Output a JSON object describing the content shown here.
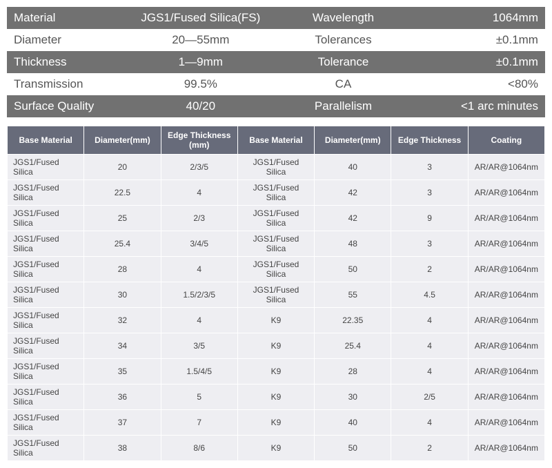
{
  "specs": {
    "rows": [
      {
        "style": "dark",
        "c1": "Material",
        "c2": "JGS1/Fused Silica(FS)",
        "c3": "Wavelength",
        "c4": "1064mm"
      },
      {
        "style": "light",
        "c1": "Diameter",
        "c2": "20—55mm",
        "c3": "Tolerances",
        "c4": "±0.1mm"
      },
      {
        "style": "dark",
        "c1": "Thickness",
        "c2": "1—9mm",
        "c3": "Tolerance",
        "c4": "±0.1mm"
      },
      {
        "style": "light",
        "c1": "Transmission",
        "c2": "99.5%",
        "c3": "CA",
        "c4": "<80%"
      },
      {
        "style": "dark",
        "c1": "Surface Quality",
        "c2": "40/20",
        "c3": "Parallelism",
        "c4": "<1 arc minutes"
      }
    ]
  },
  "dataTable": {
    "headers": [
      "Base Material",
      "Diameter(mm)",
      "Edge Thickness (mm)",
      "Base Material",
      "Diameter(mm)",
      "Edge Thickness",
      "Coating"
    ],
    "rows": [
      [
        "JGS1/Fused Silica",
        "20",
        "2/3/5",
        "JGS1/Fused Silica",
        "40",
        "3",
        "AR/AR@1064nm"
      ],
      [
        "JGS1/Fused Silica",
        "22.5",
        "4",
        "JGS1/Fused Silica",
        "42",
        "3",
        "AR/AR@1064nm"
      ],
      [
        "JGS1/Fused Silica",
        "25",
        "2/3",
        "JGS1/Fused Silica",
        "42",
        "9",
        "AR/AR@1064nm"
      ],
      [
        "JGS1/Fused Silica",
        "25.4",
        "3/4/5",
        "JGS1/Fused Silica",
        "48",
        "3",
        "AR/AR@1064nm"
      ],
      [
        "JGS1/Fused Silica",
        "28",
        "4",
        "JGS1/Fused Silica",
        "50",
        "2",
        "AR/AR@1064nm"
      ],
      [
        "JGS1/Fused Silica",
        "30",
        "1.5/2/3/5",
        "JGS1/Fused Silica",
        "55",
        "4.5",
        "AR/AR@1064nm"
      ],
      [
        "JGS1/Fused Silica",
        "32",
        "4",
        "K9",
        "22.35",
        "4",
        "AR/AR@1064nm"
      ],
      [
        "JGS1/Fused Silica",
        "34",
        "3/5",
        "K9",
        "25.4",
        "4",
        "AR/AR@1064nm"
      ],
      [
        "JGS1/Fused Silica",
        "35",
        "1.5/4/5",
        "K9",
        "28",
        "4",
        "AR/AR@1064nm"
      ],
      [
        "JGS1/Fused Silica",
        "36",
        "5",
        "K9",
        "30",
        "2/5",
        "AR/AR@1064nm"
      ],
      [
        "JGS1/Fused Silica",
        "37",
        "7",
        "K9",
        "40",
        "4",
        "AR/AR@1064nm"
      ],
      [
        "JGS1/Fused Silica",
        "38",
        "8/6",
        "K9",
        "50",
        "2",
        "AR/AR@1064nm"
      ]
    ]
  },
  "colors": {
    "darkRowBg": "#717171",
    "darkRowText": "#ffffff",
    "lightRowBg": "#ffffff",
    "lightRowText": "#555555",
    "tableHeaderBg": "#676b7a",
    "tableHeaderText": "#ffffff",
    "tableCellBg": "#eeeef2",
    "tableCellText": "#444444",
    "border": "#ffffff"
  }
}
